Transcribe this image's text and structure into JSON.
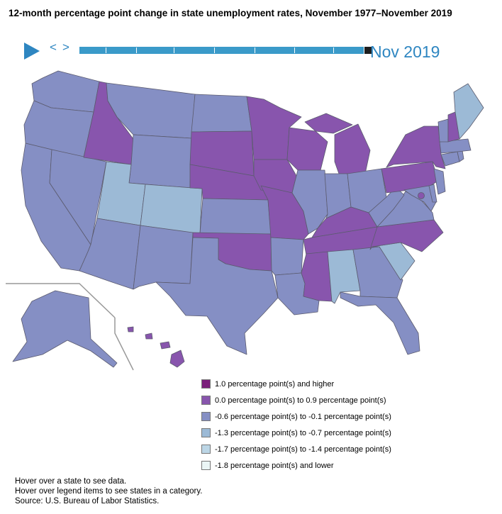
{
  "title": "12-month percentage point change in state unemployment rates, November 1977–November 2019",
  "controls": {
    "prev_label": "<",
    "next_label": ">",
    "current_date": "Nov 2019"
  },
  "colors": {
    "c1": "#7b1f7b",
    "c2": "#8855ad",
    "c3": "#858fc4",
    "c4": "#9cbad6",
    "c5": "#bcd6e6",
    "c6": "#eaf5f5"
  },
  "legend": [
    {
      "label": "1.0 percentage point(s) and higher",
      "color": "#7b1f7b"
    },
    {
      "label": "0.0 percentage point(s) to 0.9 percentage point(s)",
      "color": "#8855ad"
    },
    {
      "label": "-0.6 percentage point(s) to -0.1 percentage point(s)",
      "color": "#858fc4"
    },
    {
      "label": "-1.3 percentage point(s) to -0.7 percentage point(s)",
      "color": "#9cbad6"
    },
    {
      "label": "-1.7 percentage point(s) to -1.4 percentage point(s)",
      "color": "#bcd6e6"
    },
    {
      "label": "-1.8 percentage point(s) and lower",
      "color": "#eaf5f5"
    }
  ],
  "states": {
    "WA": "c3",
    "OR": "c3",
    "CA": "c3",
    "NV": "c3",
    "ID": "c2",
    "MT": "c3",
    "WY": "c3",
    "UT": "c4",
    "CO": "c4",
    "AZ": "c3",
    "NM": "c3",
    "ND": "c3",
    "SD": "c2",
    "NE": "c2",
    "KS": "c3",
    "OK": "c2",
    "TX": "c3",
    "MN": "c2",
    "IA": "c2",
    "MO": "c2",
    "AR": "c3",
    "LA": "c3",
    "WI": "c2",
    "IL": "c3",
    "MI": "c2",
    "IN": "c3",
    "OH": "c3",
    "KY": "c2",
    "TN": "c2",
    "MS": "c2",
    "AL": "c4",
    "GA": "c3",
    "FL": "c3",
    "SC": "c4",
    "NC": "c2",
    "VA": "c3",
    "WV": "c3",
    "PA": "c2",
    "NY": "c2",
    "NJ": "c3",
    "MD": "c3",
    "DE": "c3",
    "DC": "c2",
    "CT": "c3",
    "RI": "c3",
    "MA": "c3",
    "VT": "c3",
    "NH": "c2",
    "ME": "c4",
    "AK": "c3",
    "HI": "c2"
  },
  "footer": {
    "line1": "Hover over a state to see data.",
    "line2": "Hover over legend items to see states in a category.",
    "line3": "Source: U.S. Bureau of Labor Statistics."
  }
}
